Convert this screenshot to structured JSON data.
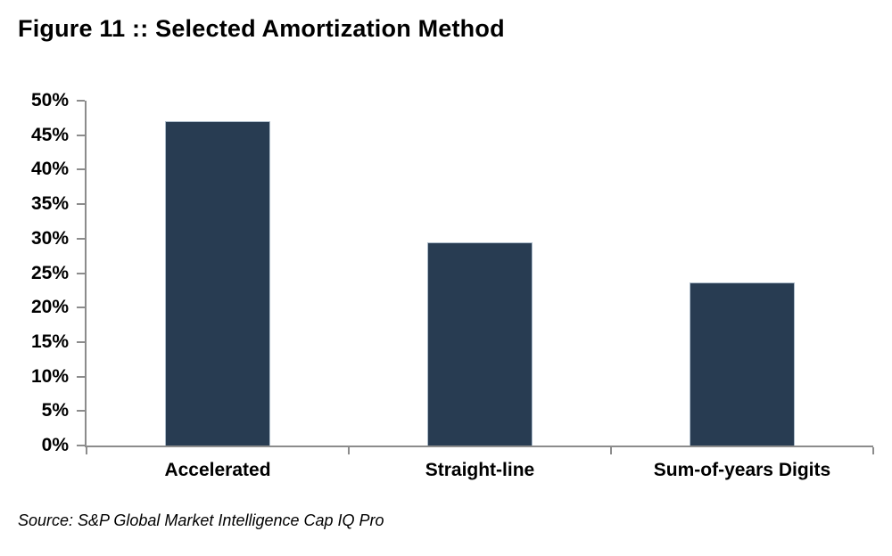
{
  "title": "Figure 11 :: Selected Amortization Method",
  "source": "Source: S&P Global Market Intelligence Cap IQ Pro",
  "colors": {
    "bar_fill": "#283C52",
    "bar_border": "#AEBDCB",
    "axis": "#8C8C8C",
    "text": "#000000",
    "background": "#FFFFFF"
  },
  "chart_data": {
    "type": "bar",
    "title": "Figure 11 :: Selected Amortization Method",
    "categories": [
      "Accelerated",
      "Straight-line",
      "Sum-of-years Digits"
    ],
    "values": [
      47.0,
      29.4,
      23.6
    ],
    "unit": "%",
    "xlabel": "",
    "ylabel": "",
    "ylim": [
      0,
      50
    ],
    "ytick_step": 5,
    "ytick_labels": [
      "0%",
      "5%",
      "10%",
      "15%",
      "20%",
      "25%",
      "30%",
      "35%",
      "40%",
      "45%",
      "50%"
    ],
    "grid": false,
    "legend": false,
    "bar_color": "#283C52",
    "bar_border_color": "#AEBDCB",
    "axis_color": "#8C8C8C",
    "source": "Source: S&P Global Market Intelligence Cap IQ Pro"
  }
}
